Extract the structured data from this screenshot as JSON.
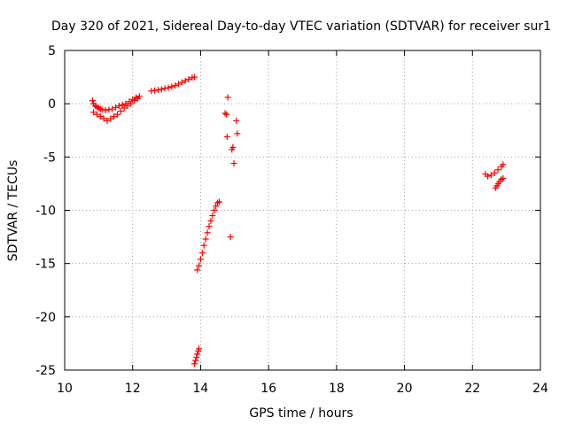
{
  "chart_data": {
    "type": "scatter",
    "title": "Day 320 of 2021, Sidereal Day-to-day VTEC variation (SDTVAR) for receiver sur1",
    "xlabel": "GPS time / hours",
    "ylabel": "SDTVAR / TECUs",
    "xlim": [
      10,
      24
    ],
    "ylim": [
      -25,
      5
    ],
    "xticks": [
      "10",
      "12",
      "14",
      "16",
      "18",
      "20",
      "22",
      "24"
    ],
    "yticks": [
      "5",
      "0",
      "-5",
      "-10",
      "-15",
      "-20",
      "-25"
    ],
    "grid": true,
    "marker": "plus",
    "marker_color": "#ff0000",
    "series": [
      {
        "values": [
          [
            10.82,
            0.3
          ],
          [
            10.85,
            0.0
          ],
          [
            10.9,
            -0.2
          ],
          [
            10.95,
            -0.3
          ],
          [
            11.0,
            -0.4
          ],
          [
            11.05,
            -0.5
          ],
          [
            11.1,
            -0.55
          ],
          [
            11.2,
            -0.6
          ],
          [
            11.3,
            -0.55
          ],
          [
            11.4,
            -0.5
          ],
          [
            11.5,
            -0.35
          ],
          [
            11.6,
            -0.2
          ],
          [
            11.7,
            -0.1
          ],
          [
            11.8,
            0.0
          ],
          [
            11.9,
            0.2
          ],
          [
            12.0,
            0.4
          ],
          [
            12.1,
            0.6
          ],
          [
            12.2,
            0.7
          ],
          [
            10.85,
            -0.8
          ],
          [
            10.95,
            -1.0
          ],
          [
            11.05,
            -1.2
          ],
          [
            11.15,
            -1.4
          ],
          [
            11.25,
            -1.6
          ],
          [
            11.35,
            -1.4
          ],
          [
            11.45,
            -1.2
          ],
          [
            11.55,
            -1.0
          ],
          [
            11.65,
            -0.7
          ],
          [
            11.75,
            -0.4
          ],
          [
            11.85,
            -0.2
          ],
          [
            11.95,
            0.0
          ],
          [
            12.05,
            0.3
          ],
          [
            12.15,
            0.5
          ],
          [
            12.55,
            1.2
          ],
          [
            12.65,
            1.25
          ],
          [
            12.75,
            1.3
          ],
          [
            12.85,
            1.35
          ],
          [
            12.95,
            1.45
          ],
          [
            13.05,
            1.5
          ],
          [
            13.15,
            1.6
          ],
          [
            13.25,
            1.7
          ],
          [
            13.35,
            1.85
          ],
          [
            13.45,
            2.0
          ],
          [
            13.55,
            2.15
          ],
          [
            13.65,
            2.3
          ],
          [
            13.75,
            2.45
          ],
          [
            13.82,
            2.5
          ],
          [
            14.8,
            0.6
          ],
          [
            14.72,
            -0.9
          ],
          [
            14.76,
            -1.0
          ],
          [
            15.05,
            -1.6
          ],
          [
            15.08,
            -2.8
          ],
          [
            14.78,
            -3.1
          ],
          [
            14.95,
            -4.1
          ],
          [
            14.92,
            -4.3
          ],
          [
            14.98,
            -5.6
          ],
          [
            14.88,
            -12.5
          ],
          [
            13.9,
            -15.6
          ],
          [
            13.95,
            -15.2
          ],
          [
            14.0,
            -14.6
          ],
          [
            14.05,
            -14.0
          ],
          [
            14.1,
            -13.3
          ],
          [
            14.15,
            -12.7
          ],
          [
            14.2,
            -12.1
          ],
          [
            14.25,
            -11.5
          ],
          [
            14.3,
            -11.0
          ],
          [
            14.35,
            -10.5
          ],
          [
            14.4,
            -10.0
          ],
          [
            14.45,
            -9.6
          ],
          [
            14.5,
            -9.3
          ],
          [
            14.55,
            -9.2
          ],
          [
            13.82,
            -24.4
          ],
          [
            13.85,
            -24.1
          ],
          [
            13.88,
            -23.8
          ],
          [
            13.9,
            -23.5
          ],
          [
            13.93,
            -23.2
          ],
          [
            13.95,
            -23.0
          ],
          [
            22.38,
            -6.6
          ],
          [
            22.45,
            -6.8
          ],
          [
            22.55,
            -6.7
          ],
          [
            22.65,
            -6.5
          ],
          [
            22.75,
            -6.2
          ],
          [
            22.85,
            -5.9
          ],
          [
            22.9,
            -5.7
          ],
          [
            22.68,
            -7.9
          ],
          [
            22.72,
            -7.7
          ],
          [
            22.76,
            -7.5
          ],
          [
            22.8,
            -7.3
          ],
          [
            22.85,
            -7.1
          ],
          [
            22.9,
            -7.0
          ]
        ]
      }
    ]
  }
}
